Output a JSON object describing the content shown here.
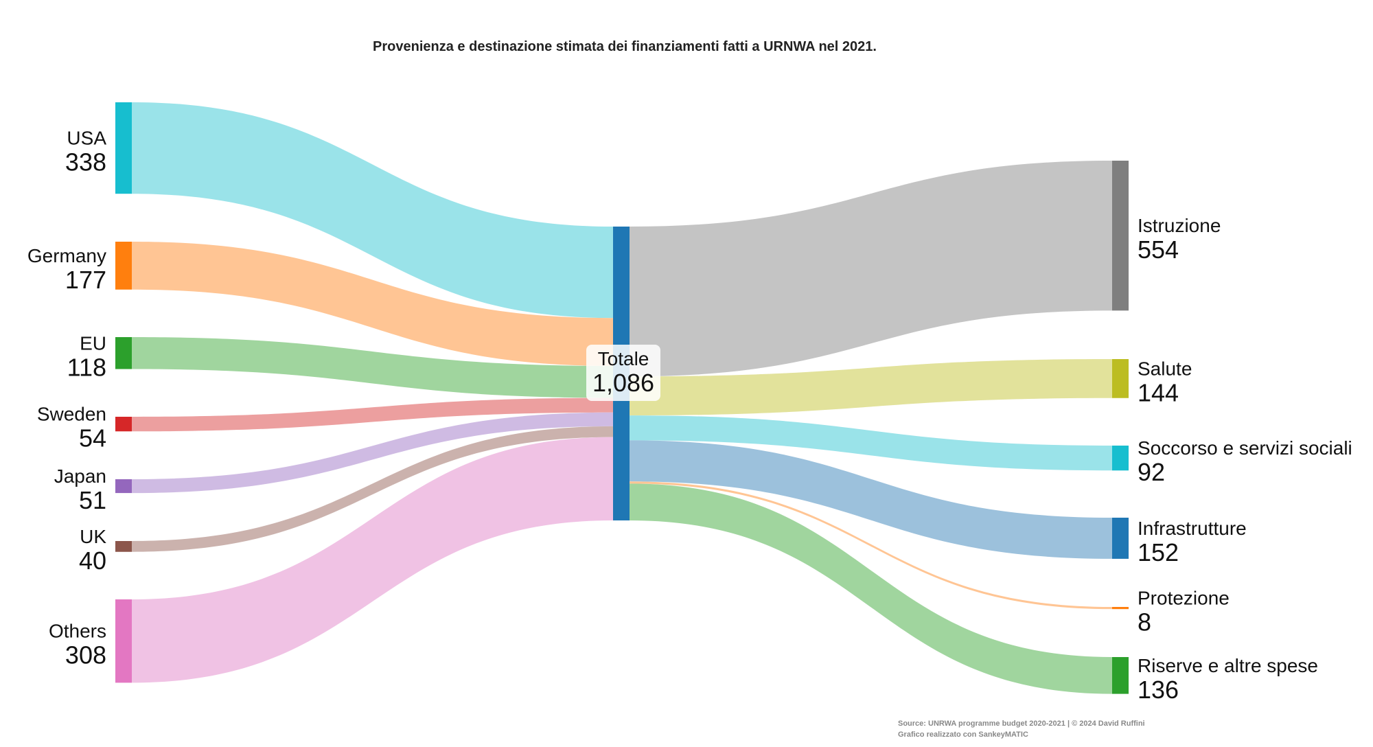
{
  "chart_data": {
    "type": "sankey",
    "title": "Provenienza e destinazione stimata dei finanziamenti fatti a URNWA nel 2021.",
    "center": {
      "name": "Totale",
      "value": 1086,
      "label": "1,086"
    },
    "sources": [
      {
        "name": "USA",
        "value": 338,
        "color": "#17becf",
        "flow_color": "#9ae3e9"
      },
      {
        "name": "Germany",
        "value": 177,
        "color": "#ff7f0e",
        "flow_color": "#ffc594"
      },
      {
        "name": "EU",
        "value": 118,
        "color": "#2ca02c",
        "flow_color": "#a0d59e"
      },
      {
        "name": "Sweden",
        "value": 54,
        "color": "#d62728",
        "flow_color": "#ec9f9f"
      },
      {
        "name": "Japan",
        "value": 51,
        "color": "#9467bd",
        "flow_color": "#cfbbe3"
      },
      {
        "name": "UK",
        "value": 40,
        "color": "#8c564b",
        "flow_color": "#cbb2ad"
      },
      {
        "name": "Others",
        "value": 308,
        "color": "#e377c2",
        "flow_color": "#f0c2e4"
      }
    ],
    "destinations": [
      {
        "name": "Istruzione",
        "value": 554,
        "color": "#7f7f7f",
        "flow_color": "#c4c4c4"
      },
      {
        "name": "Salute",
        "value": 144,
        "color": "#bcbd22",
        "flow_color": "#e2e29b"
      },
      {
        "name": "Soccorso e servizi sociali",
        "value": 92,
        "color": "#17becf",
        "flow_color": "#9ae3e9"
      },
      {
        "name": "Infrastrutture",
        "value": 152,
        "color": "#1f77b4",
        "flow_color": "#9cc1dc"
      },
      {
        "name": "Protezione",
        "value": 8,
        "color": "#ff7f0e",
        "flow_color": "#ffc594"
      },
      {
        "name": "Riserve e altre spese",
        "value": 136,
        "color": "#2ca02c",
        "flow_color": "#a0d59e"
      }
    ],
    "center_color": "#1f77b4",
    "credit": [
      "Source: UNRWA programme budget 2020-2021 | © 2024 David Ruffini",
      "Grafico realizzato con SankeyMATIC"
    ]
  }
}
